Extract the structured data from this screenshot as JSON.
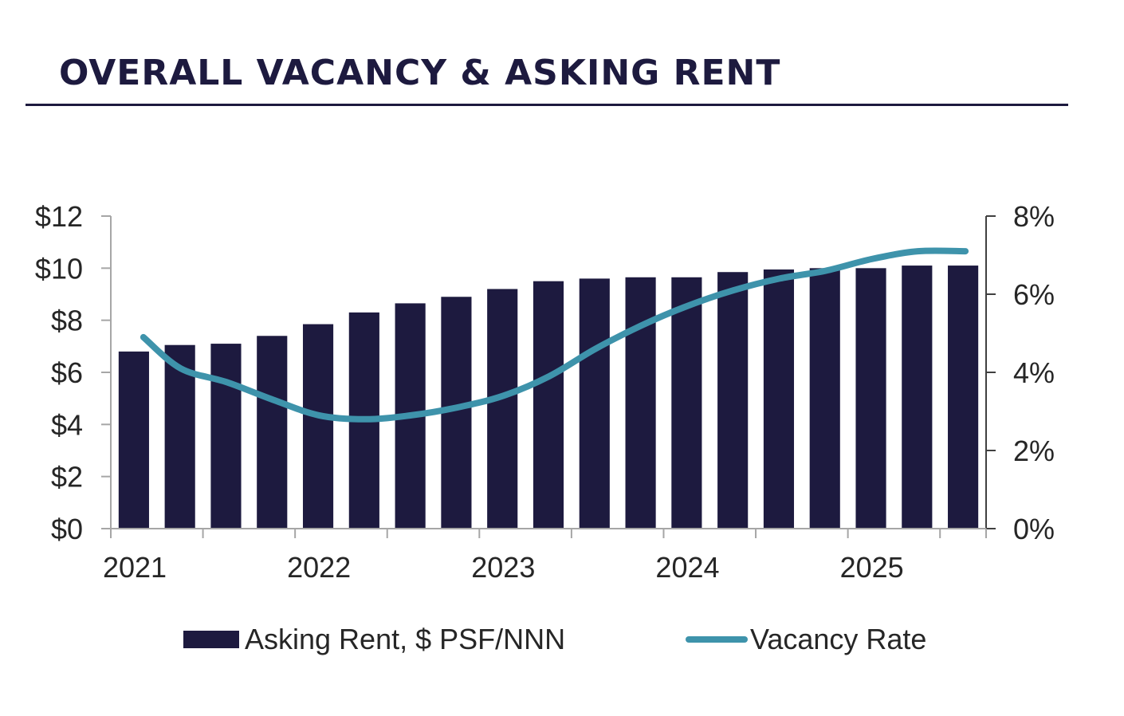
{
  "title": "OVERALL VACANCY & ASKING RENT",
  "colors": {
    "bar": "#1d1a3f",
    "line": "#3e93ab",
    "axis": "#a6a6a6",
    "text": "#262626",
    "title": "#1d1a3f"
  },
  "chart_data": {
    "type": "bar",
    "title": "OVERALL VACANCY & ASKING RENT",
    "x_labels": [
      "2021",
      "2022",
      "2023",
      "2024",
      "2025"
    ],
    "periods": [
      "2021 Q1",
      "2021 Q2",
      "2021 Q3",
      "2021 Q4",
      "2022 Q1",
      "2022 Q2",
      "2022 Q3",
      "2022 Q4",
      "2023 Q1",
      "2023 Q2",
      "2023 Q3",
      "2023 Q4",
      "2024 Q1",
      "2024 Q2",
      "2024 Q3",
      "2024 Q4",
      "2025 Q1",
      "2025 Q2",
      "2025 Q3"
    ],
    "series": [
      {
        "name": "Asking Rent, $ PSF/NNN",
        "type": "bar",
        "axis": "left",
        "values": [
          6.8,
          7.05,
          7.1,
          7.4,
          7.85,
          8.3,
          8.65,
          8.9,
          9.2,
          9.5,
          9.6,
          9.65,
          9.65,
          9.85,
          9.95,
          10.0,
          10.0,
          10.1,
          10.1
        ]
      },
      {
        "name": "Vacancy Rate",
        "type": "line",
        "axis": "right",
        "values": [
          4.9,
          4.1,
          3.75,
          3.3,
          2.9,
          2.8,
          2.9,
          3.1,
          3.4,
          3.9,
          4.6,
          5.2,
          5.7,
          6.1,
          6.4,
          6.6,
          6.9,
          7.1,
          7.1
        ]
      }
    ],
    "left_axis": {
      "ylim": [
        0,
        12
      ],
      "ticks": [
        "$0",
        "$2",
        "$4",
        "$6",
        "$8",
        "$10",
        "$12"
      ]
    },
    "right_axis": {
      "ylim": [
        0,
        8
      ],
      "ticks": [
        "0%",
        "2%",
        "4%",
        "6%",
        "8%"
      ]
    },
    "grid": false,
    "legend": "bottom"
  }
}
